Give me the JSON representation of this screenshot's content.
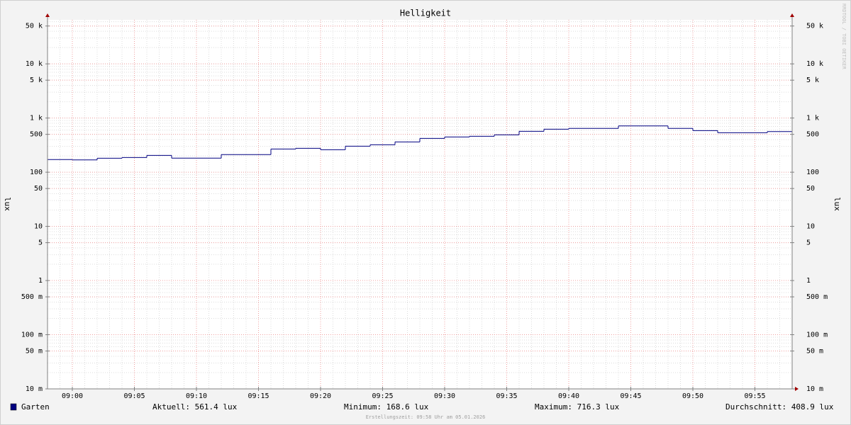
{
  "chart_data": {
    "type": "line",
    "title": "Helligkeit",
    "y_label": "lux",
    "watermark": "RRDTOOL / TOBI OETIKER",
    "log_scale": true,
    "grid": true,
    "step": true,
    "xlim": [
      "08:58",
      "09:58"
    ],
    "xticks": [
      "09:00",
      "09:05",
      "09:10",
      "09:15",
      "09:20",
      "09:25",
      "09:30",
      "09:35",
      "09:40",
      "09:45",
      "09:50",
      "09:55"
    ],
    "ylim": [
      0.01,
      65000
    ],
    "yticks": [
      {
        "value": 0.01,
        "label": "10 m"
      },
      {
        "value": 0.05,
        "label": "50 m"
      },
      {
        "value": 0.1,
        "label": "100 m"
      },
      {
        "value": 0.5,
        "label": "500 m"
      },
      1,
      5,
      10,
      50,
      100,
      500,
      {
        "value": 1000,
        "label": "1 k"
      },
      {
        "value": 5000,
        "label": "5 k"
      },
      {
        "value": 10000,
        "label": "10 k"
      },
      {
        "value": 50000,
        "label": "50 k"
      }
    ],
    "series": [
      {
        "name": "Garten",
        "color": "#000080",
        "x": [
          "08:58",
          "09:00",
          "09:02",
          "09:04",
          "09:06",
          "09:08",
          "09:12",
          "09:16",
          "09:18",
          "09:20",
          "09:22",
          "09:24",
          "09:26",
          "09:28",
          "09:30",
          "09:32",
          "09:34",
          "09:36",
          "09:38",
          "09:40",
          "09:44",
          "09:48",
          "09:50",
          "09:52",
          "09:56"
        ],
        "values": [
          171,
          168.6,
          181,
          187,
          204,
          182,
          211,
          268,
          276,
          260,
          302,
          321,
          362,
          421,
          447,
          461,
          489,
          568,
          622,
          643,
          716.3,
          643,
          586,
          535,
          561.4
        ]
      }
    ],
    "stats": [
      "Aktuell: 561.4 lux",
      "Minimum: 168.6 lux",
      "Maximum: 716.3 lux",
      "Durchschnitt: 408.9 lux"
    ],
    "footer": "Erstellungszeit: 09:58 Uhr am 05.01.2026"
  }
}
